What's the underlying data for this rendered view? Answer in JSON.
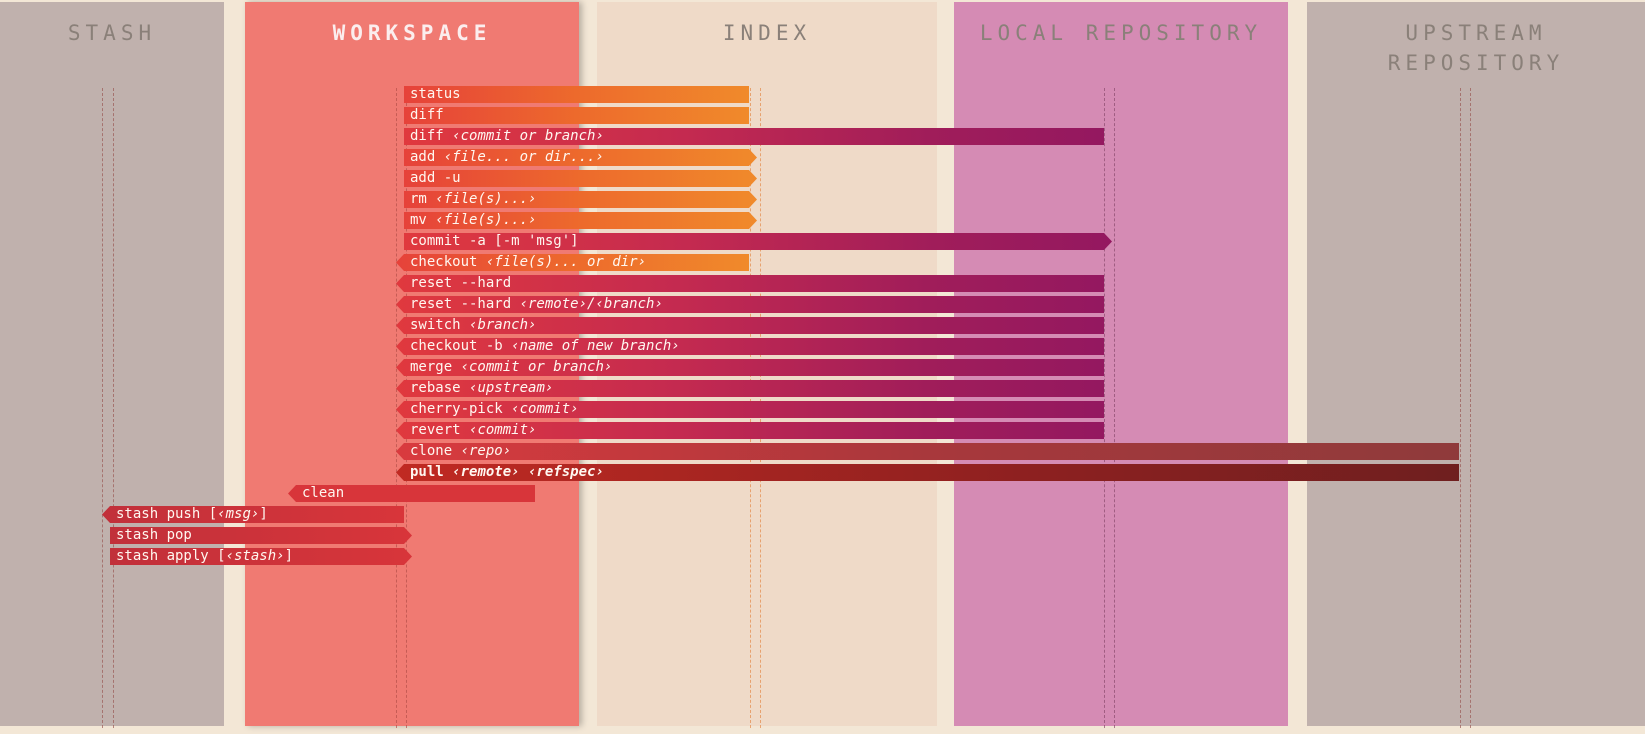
{
  "columns": [
    {
      "id": "stash",
      "title": "STASH",
      "color": "#c0b1ad"
    },
    {
      "id": "workspace",
      "title": "WORKSPACE",
      "color": "#f07a72"
    },
    {
      "id": "index",
      "title": "INDEX",
      "color": "#efdac8"
    },
    {
      "id": "local",
      "title": "LOCAL REPOSITORY",
      "color": "#d58bb4"
    },
    {
      "id": "upstream",
      "title": "UPSTREAM\nREPOSITORY",
      "color": "#c0b1ad"
    }
  ],
  "commands": [
    {
      "name": "status",
      "arg": "",
      "from": "workspace",
      "to": "index",
      "dir": "none"
    },
    {
      "name": "diff",
      "arg": "",
      "from": "workspace",
      "to": "index",
      "dir": "none"
    },
    {
      "name": "diff ",
      "arg": "‹commit or branch›",
      "from": "workspace",
      "to": "local",
      "dir": "none"
    },
    {
      "name": "add ",
      "arg": "‹file... or dir...›",
      "from": "workspace",
      "to": "index",
      "dir": "right"
    },
    {
      "name": "add -u",
      "arg": "",
      "from": "workspace",
      "to": "index",
      "dir": "right"
    },
    {
      "name": "rm ",
      "arg": "‹file(s)...›",
      "from": "workspace",
      "to": "index",
      "dir": "right"
    },
    {
      "name": "mv ",
      "arg": "‹file(s)...›",
      "from": "workspace",
      "to": "index",
      "dir": "right"
    },
    {
      "name": "commit -a [-m 'msg']",
      "arg": "",
      "from": "workspace",
      "to": "local",
      "dir": "right"
    },
    {
      "name": "checkout ",
      "arg": "‹file(s)... or dir›",
      "from": "workspace",
      "to": "index",
      "dir": "left"
    },
    {
      "name": "reset --hard",
      "arg": "",
      "from": "workspace",
      "to": "local",
      "dir": "left"
    },
    {
      "name": "reset --hard ",
      "arg": "‹remote›/‹branch›",
      "from": "workspace",
      "to": "local",
      "dir": "left"
    },
    {
      "name": "switch ",
      "arg": "‹branch›",
      "from": "workspace",
      "to": "local",
      "dir": "left"
    },
    {
      "name": "checkout -b ",
      "arg": "‹name of new branch›",
      "from": "workspace",
      "to": "local",
      "dir": "left"
    },
    {
      "name": "merge ",
      "arg": "‹commit or branch›",
      "from": "workspace",
      "to": "local",
      "dir": "left"
    },
    {
      "name": "rebase ",
      "arg": "‹upstream›",
      "from": "workspace",
      "to": "local",
      "dir": "left"
    },
    {
      "name": "cherry-pick ",
      "arg": "‹commit›",
      "from": "workspace",
      "to": "local",
      "dir": "left"
    },
    {
      "name": "revert ",
      "arg": "‹commit›",
      "from": "workspace",
      "to": "local",
      "dir": "left"
    },
    {
      "name": "clone ",
      "arg": "‹repo›",
      "from": "workspace",
      "to": "upstream",
      "dir": "left"
    },
    {
      "name": "pull ",
      "arg": "‹remote› ‹refspec›",
      "from": "workspace",
      "to": "upstream",
      "dir": "left",
      "bold": true
    },
    {
      "name": "clean",
      "arg": "",
      "from": "workspace-mid",
      "to": "workspace-end",
      "dir": "left"
    },
    {
      "name": "stash push [",
      "arg": "‹msg›",
      "suffix": "]",
      "from": "stash",
      "to": "workspace",
      "dir": "left"
    },
    {
      "name": "stash pop",
      "arg": "",
      "from": "stash",
      "to": "workspace",
      "dir": "right"
    },
    {
      "name": "stash apply [",
      "arg": "‹stash›",
      "suffix": "]",
      "from": "stash",
      "to": "workspace",
      "dir": "right"
    }
  ]
}
